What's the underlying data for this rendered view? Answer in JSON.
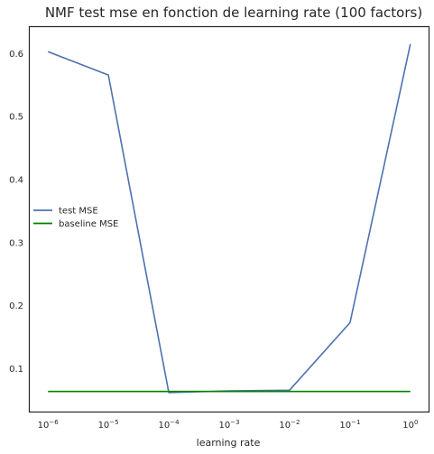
{
  "chart_data": {
    "type": "line",
    "title": "NMF test mse en fonction de learning rate (100 factors)",
    "xlabel": "learning rate",
    "ylabel": "",
    "xscale": "log",
    "xlim": [
      5e-07,
      2
    ],
    "ylim": [
      0.032,
      0.642
    ],
    "grid": false,
    "legend_position": "center-left",
    "x_ticks": [
      {
        "value": 1e-06,
        "base": "10",
        "exp": "−6"
      },
      {
        "value": 1e-05,
        "base": "10",
        "exp": "−5"
      },
      {
        "value": 0.0001,
        "base": "10",
        "exp": "−4"
      },
      {
        "value": 0.001,
        "base": "10",
        "exp": "−3"
      },
      {
        "value": 0.01,
        "base": "10",
        "exp": "−2"
      },
      {
        "value": 0.1,
        "base": "10",
        "exp": "−1"
      },
      {
        "value": 1,
        "base": "10",
        "exp": "0"
      }
    ],
    "y_ticks": [
      {
        "value": 0.1,
        "label": "0.1"
      },
      {
        "value": 0.2,
        "label": "0.2"
      },
      {
        "value": 0.3,
        "label": "0.3"
      },
      {
        "value": 0.4,
        "label": "0.4"
      },
      {
        "value": 0.5,
        "label": "0.5"
      },
      {
        "value": 0.6,
        "label": "0.6"
      }
    ],
    "x": [
      1e-06,
      1e-05,
      0.0001,
      0.001,
      0.01,
      0.1,
      1
    ],
    "series": [
      {
        "name": "test MSE",
        "color": "#4c72b0",
        "values": [
          0.603,
          0.566,
          0.062,
          0.065,
          0.066,
          0.173,
          0.615
        ]
      },
      {
        "name": "baseline MSE",
        "color": "#008000",
        "values": [
          0.064,
          0.064,
          0.064,
          0.064,
          0.064,
          0.064,
          0.064
        ]
      }
    ]
  }
}
